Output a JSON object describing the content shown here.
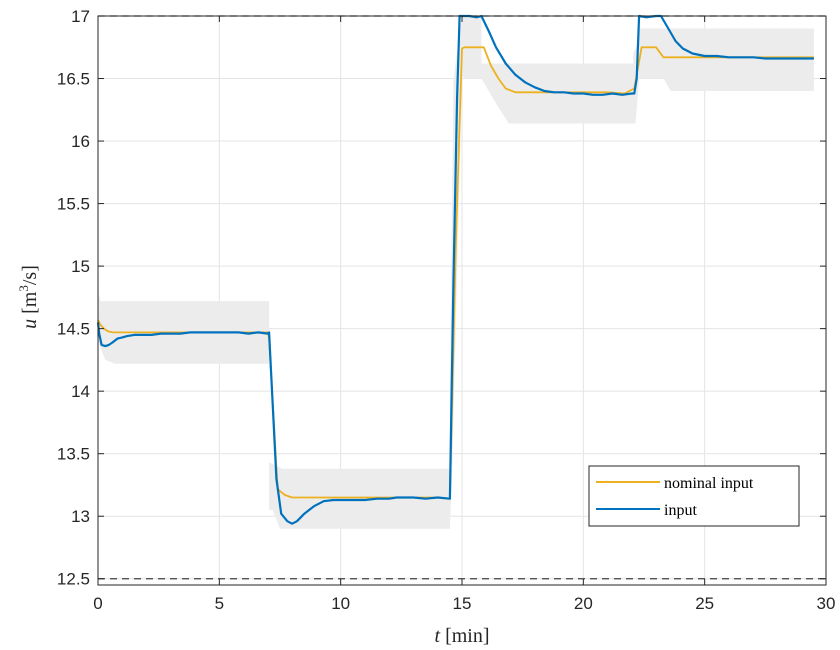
{
  "chart_data": {
    "type": "line",
    "title": "",
    "xlabel": {
      "var": "t",
      "unit": "[min]"
    },
    "ylabel": {
      "var": "u",
      "unit_prefix": "[m",
      "unit_sup": "3",
      "unit_suffix": "/s]"
    },
    "xlim": [
      0,
      30
    ],
    "ylim": [
      12.45,
      17
    ],
    "xticks": [
      0,
      5,
      10,
      15,
      20,
      25,
      30
    ],
    "yticks": [
      12.5,
      13,
      13.5,
      14,
      14.5,
      15,
      15.5,
      16,
      16.5,
      17
    ],
    "grid": true,
    "legend_placement": "lower-right",
    "bounds": {
      "upper": 17,
      "lower": 12.5,
      "style": "dashed",
      "color": "#404040"
    },
    "band": {
      "color": "#ececec",
      "upper": [
        [
          -0.1,
          14.8
        ],
        [
          0.1,
          14.72
        ],
        [
          7.05,
          14.72
        ],
        [
          7.05,
          13.43
        ],
        [
          7.6,
          13.38
        ],
        [
          14.5,
          13.38
        ],
        [
          14.5,
          14.0
        ],
        [
          14.65,
          16.5
        ],
        [
          15.0,
          17.0
        ],
        [
          15.8,
          17.0
        ],
        [
          15.8,
          16.62
        ],
        [
          22.05,
          16.62
        ],
        [
          22.05,
          16.7
        ],
        [
          22.3,
          16.8
        ],
        [
          22.3,
          16.9
        ],
        [
          29.5,
          16.9
        ],
        [
          29.5,
          16.5
        ]
      ],
      "lower": [
        [
          29.5,
          16.4
        ],
        [
          23.6,
          16.4
        ],
        [
          23.3,
          16.5
        ],
        [
          22.3,
          16.5
        ],
        [
          22.15,
          16.14
        ],
        [
          16.9,
          16.14
        ],
        [
          16.9,
          16.15
        ],
        [
          16.4,
          16.3
        ],
        [
          15.8,
          16.5
        ],
        [
          15.1,
          16.5
        ],
        [
          15.0,
          16.52
        ],
        [
          14.6,
          13.4
        ],
        [
          14.5,
          12.9
        ],
        [
          8.0,
          12.9
        ],
        [
          7.5,
          12.9
        ],
        [
          7.2,
          13.05
        ],
        [
          7.05,
          13.05
        ],
        [
          7.05,
          14.22
        ],
        [
          0.7,
          14.22
        ],
        [
          0.3,
          14.25
        ],
        [
          -0.1,
          14.4
        ]
      ]
    },
    "series": [
      {
        "name": "nominal input",
        "color": "#EDB120",
        "x": [
          0,
          0.1,
          0.25,
          0.4,
          0.6,
          1.0,
          2.0,
          3.0,
          4.0,
          5.0,
          6.0,
          7.0,
          7.05,
          7.4,
          7.5,
          7.7,
          8.0,
          9.0,
          10.0,
          11.0,
          12.0,
          13.0,
          14.0,
          14.5,
          14.75,
          15.0,
          15.1,
          15.5,
          15.9,
          16.2,
          16.5,
          16.8,
          17.2,
          18.0,
          19.0,
          20.0,
          21.0,
          21.7,
          22.1,
          22.4,
          22.7,
          23.0,
          23.3,
          24.0,
          25.0,
          26.0,
          27.0,
          28.0,
          29.0,
          29.5
        ],
        "y": [
          14.57,
          14.53,
          14.5,
          14.48,
          14.47,
          14.47,
          14.47,
          14.47,
          14.47,
          14.47,
          14.47,
          14.47,
          14.42,
          13.22,
          13.2,
          13.17,
          13.15,
          13.15,
          13.15,
          13.15,
          13.15,
          13.15,
          13.15,
          13.14,
          15.2,
          16.74,
          16.75,
          16.75,
          16.75,
          16.6,
          16.5,
          16.42,
          16.39,
          16.39,
          16.39,
          16.39,
          16.39,
          16.38,
          16.42,
          16.75,
          16.75,
          16.75,
          16.67,
          16.67,
          16.67,
          16.67,
          16.67,
          16.67,
          16.67,
          16.67
        ]
      },
      {
        "name": "input",
        "color": "#0072BD",
        "x": [
          0,
          0.05,
          0.15,
          0.3,
          0.45,
          0.6,
          0.8,
          1.0,
          1.2,
          1.5,
          1.8,
          2.2,
          2.6,
          3.0,
          3.4,
          3.8,
          4.2,
          4.6,
          5.0,
          5.4,
          5.8,
          6.2,
          6.6,
          7.0,
          7.05,
          7.35,
          7.55,
          7.8,
          8.0,
          8.2,
          8.5,
          8.9,
          9.3,
          9.7,
          10.0,
          10.5,
          11.0,
          11.5,
          12.0,
          12.3,
          12.6,
          13.0,
          13.5,
          14.0,
          14.5,
          14.65,
          14.8,
          14.9,
          15.0,
          15.3,
          15.6,
          15.8,
          16.1,
          16.4,
          16.8,
          17.2,
          17.6,
          18.0,
          18.4,
          18.8,
          19.2,
          19.6,
          20.0,
          20.4,
          20.8,
          21.2,
          21.6,
          22.0,
          22.1,
          22.2,
          22.3,
          22.6,
          23.0,
          23.2,
          23.5,
          23.8,
          24.1,
          24.5,
          25.0,
          25.5,
          26.0,
          26.5,
          27.0,
          27.5,
          28.0,
          28.5,
          29.0,
          29.5
        ],
        "y": [
          14.55,
          14.46,
          14.37,
          14.36,
          14.37,
          14.39,
          14.42,
          14.43,
          14.44,
          14.45,
          14.45,
          14.45,
          14.46,
          14.46,
          14.46,
          14.47,
          14.47,
          14.47,
          14.47,
          14.47,
          14.47,
          14.46,
          14.47,
          14.46,
          14.47,
          13.3,
          13.02,
          12.96,
          12.94,
          12.96,
          13.02,
          13.08,
          13.12,
          13.13,
          13.13,
          13.13,
          13.13,
          13.14,
          13.14,
          13.15,
          13.15,
          13.15,
          13.14,
          13.15,
          13.14,
          14.9,
          16.35,
          17.0,
          17.0,
          17.0,
          16.99,
          17.0,
          16.88,
          16.75,
          16.62,
          16.53,
          16.47,
          16.43,
          16.4,
          16.39,
          16.39,
          16.38,
          16.38,
          16.37,
          16.37,
          16.38,
          16.37,
          16.38,
          16.38,
          16.5,
          17.0,
          16.99,
          17.0,
          17.0,
          16.9,
          16.8,
          16.74,
          16.7,
          16.68,
          16.68,
          16.67,
          16.67,
          16.67,
          16.66,
          16.66,
          16.66,
          16.66,
          16.66
        ]
      }
    ]
  }
}
